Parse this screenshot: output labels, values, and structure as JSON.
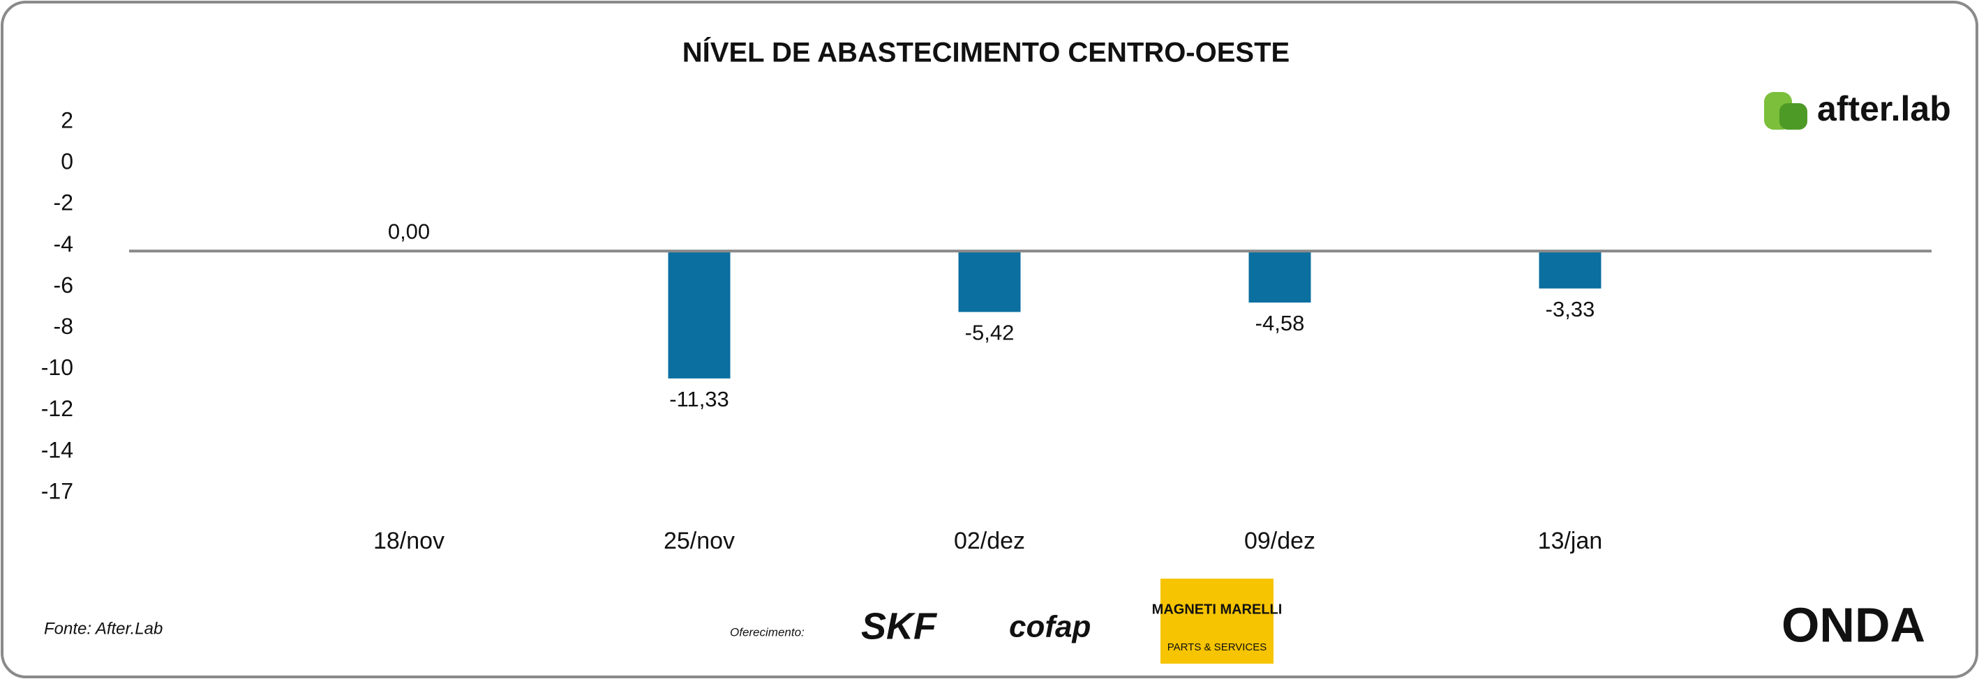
{
  "chart_data": {
    "type": "bar",
    "title": "NÍVEL DE ABASTECIMENTO CENTRO-OESTE",
    "categories": [
      "18/nov",
      "25/nov",
      "02/dez",
      "09/dez",
      "13/jan"
    ],
    "values": [
      0,
      -11.33,
      -5.42,
      -4.58,
      -3.33
    ],
    "value_labels": [
      "0,00",
      "-11,33",
      "-5,42",
      "-4,58",
      "-3,33"
    ],
    "color": "#0b6fa0",
    "ylim": [
      -22,
      12
    ],
    "y_labels": [
      "2",
      "0",
      "-2",
      "-4",
      "-6",
      "-8",
      "-10",
      "-12",
      "-14",
      "-17"
    ]
  },
  "footer": {
    "source": "Fonte: After.Lab",
    "sponsor_label": "Oferecimento:"
  },
  "logos": {
    "brand": "after.lab",
    "skf": "SKF",
    "cofap": "cofap",
    "magneti": "MAGNETI MARELLI",
    "magneti_sub": "PARTS & SERVICES",
    "onda": "ONDA"
  }
}
